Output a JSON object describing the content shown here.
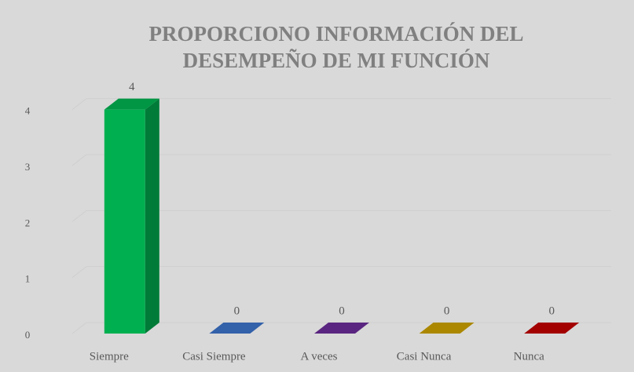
{
  "chart_data": {
    "type": "bar3d",
    "title": [
      "PROPORCIONO INFORMACIÓN DEL",
      "DESEMPEÑO DE MI FUNCIÓN"
    ],
    "categories": [
      "Siempre",
      "Casi Siempre",
      "A veces",
      "Casi Nunca",
      "Nunca"
    ],
    "series": [
      {
        "values": [
          4,
          0,
          0,
          0,
          0
        ],
        "colors": [
          "#00b050",
          "#3c72c8",
          "#6a2c96",
          "#c9a000",
          "#c00000"
        ]
      }
    ],
    "ylim": [
      0,
      4.5
    ],
    "yticks": [
      0,
      1,
      2,
      3,
      4
    ],
    "grid": true
  }
}
